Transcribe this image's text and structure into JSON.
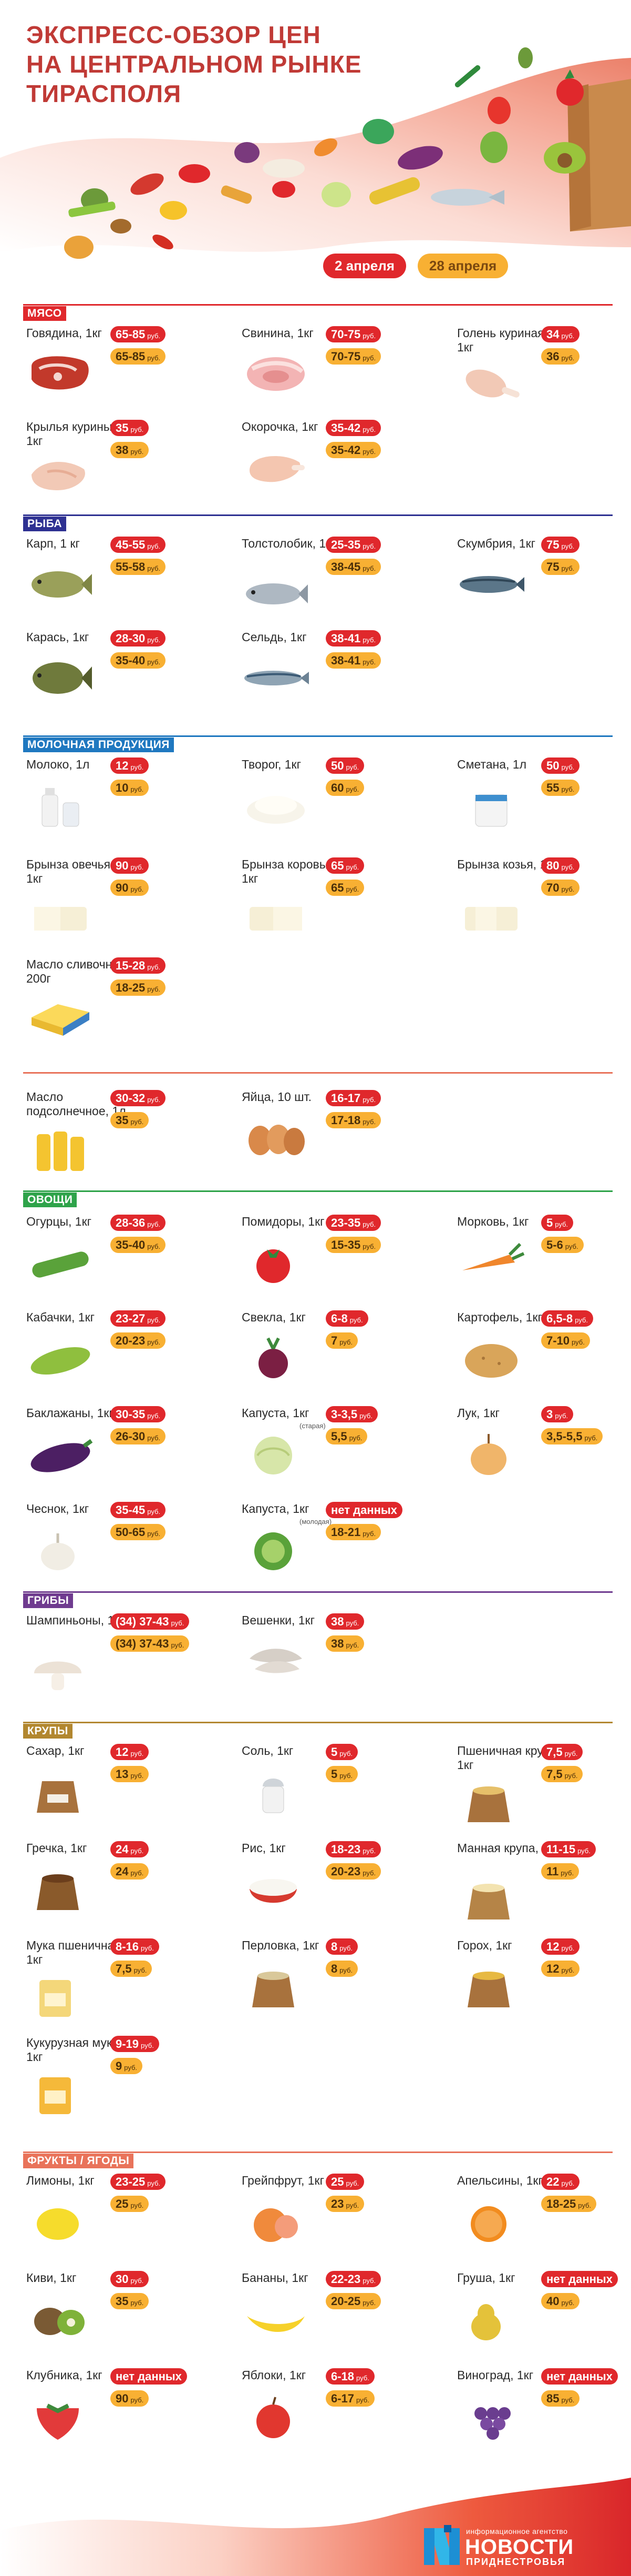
{
  "title": {
    "line1": "ЭКСПРЕСС-ОБЗОР ЦЕН",
    "line2": "НА ЦЕНТРАЛЬНОМ РЫНКЕ",
    "line3": "ТИРАСПОЛЯ"
  },
  "legend": {
    "date_a": "2 апреля",
    "date_b": "28 апреля"
  },
  "colors": {
    "red": "#e0282c",
    "yellow": "#f8b033",
    "title": "#c03a36"
  },
  "currency": "руб.",
  "sections": {
    "meat": {
      "label": "МЯСО",
      "items": [
        {
          "name": "Говядина, 1кг",
          "a": "65-85",
          "b": "65-85",
          "icon": "beef-icon"
        },
        {
          "name": "Свинина, 1кг",
          "a": "70-75",
          "b": "70-75",
          "icon": "pork-icon"
        },
        {
          "name": "Голень куриная, 1кг",
          "a": "34",
          "b": "36",
          "icon": "chicken-leg-icon"
        },
        {
          "name": "Крылья куриные, 1кг",
          "a": "35",
          "b": "38",
          "icon": "chicken-wing-icon"
        },
        {
          "name": "Окорочка, 1кг",
          "a": "35-42",
          "b": "35-42",
          "icon": "chicken-thigh-icon"
        }
      ]
    },
    "fish": {
      "label": "РЫБА",
      "items": [
        {
          "name": "Карп, 1 кг",
          "a": "45-55",
          "b": "55-58",
          "icon": "carp-icon"
        },
        {
          "name": "Толстолобик, 1кг",
          "a": "25-35",
          "b": "38-45",
          "icon": "silver-carp-icon"
        },
        {
          "name": "Скумбрия, 1кг",
          "a": "75",
          "b": "75",
          "icon": "mackerel-icon"
        },
        {
          "name": "Карась, 1кг",
          "a": "28-30",
          "b": "35-40",
          "icon": "crucian-icon"
        },
        {
          "name": "Сельдь, 1кг",
          "a": "38-41",
          "b": "38-41",
          "icon": "herring-icon"
        }
      ]
    },
    "dairy": {
      "label": "МОЛОЧНАЯ ПРОДУКЦИЯ",
      "items": [
        {
          "name": "Молоко, 1л",
          "a": "12",
          "b": "10",
          "icon": "milk-icon"
        },
        {
          "name": "Творог, 1кг",
          "a": "50",
          "b": "60",
          "icon": "cottage-cheese-icon"
        },
        {
          "name": "Сметана, 1л",
          "a": "50",
          "b": "55",
          "icon": "sour-cream-icon"
        },
        {
          "name": "Брынза овечья, 1кг",
          "a": "90",
          "b": "90",
          "icon": "sheep-cheese-icon"
        },
        {
          "name": "Брынза коровья, 1кг",
          "a": "65",
          "b": "65",
          "icon": "cow-cheese-icon"
        },
        {
          "name": "Брынза козья, 1кг",
          "a": "80",
          "b": "70",
          "icon": "goat-cheese-icon"
        },
        {
          "name": "Масло сливочное, 200г",
          "a": "15-28",
          "b": "18-25",
          "icon": "butter-icon"
        }
      ]
    },
    "misc": {
      "items": [
        {
          "name": "Масло подсолнечное, 1л",
          "a": "30-32",
          "b": "35",
          "icon": "sunflower-oil-icon"
        },
        {
          "name": "Яйца, 10 шт.",
          "a": "16-17",
          "b": "17-18",
          "icon": "eggs-icon"
        }
      ]
    },
    "veg": {
      "label": "ОВОЩИ",
      "items": [
        {
          "name": "Огурцы, 1кг",
          "a": "28-36",
          "b": "35-40",
          "icon": "cucumber-icon"
        },
        {
          "name": "Помидоры, 1кг",
          "a": "23-35",
          "b": "15-35",
          "icon": "tomato-icon"
        },
        {
          "name": "Морковь, 1кг",
          "a": "5",
          "b": "5-6",
          "icon": "carrot-icon"
        },
        {
          "name": "Кабачки, 1кг",
          "a": "23-27",
          "b": "20-23",
          "icon": "zucchini-icon"
        },
        {
          "name": "Свекла, 1кг",
          "a": "6-8",
          "b": "7",
          "icon": "beet-icon"
        },
        {
          "name": "Картофель, 1кг",
          "a": "6,5-8",
          "b": "7-10",
          "icon": "potato-icon"
        },
        {
          "name": "Баклажаны, 1кг",
          "a": "30-35",
          "b": "26-30",
          "icon": "eggplant-icon"
        },
        {
          "name": "Капуста, 1кг",
          "note": "(старая)",
          "a": "3-3,5",
          "b": "5,5",
          "icon": "old-cabbage-icon"
        },
        {
          "name": "Лук, 1кг",
          "a": "3",
          "b": "3,5-5,5",
          "icon": "onion-icon"
        },
        {
          "name": "Чеснок, 1кг",
          "a": "35-45",
          "b": "50-65",
          "icon": "garlic-icon"
        },
        {
          "name": "Капуста, 1кг",
          "note": "(молодая)",
          "a": "нет данных",
          "b": "18-21",
          "a_nocur": true,
          "icon": "young-cabbage-icon"
        }
      ]
    },
    "mush": {
      "label": "ГРИБЫ",
      "items": [
        {
          "name": "Шампиньоны, 1кг",
          "a": "(34) 37-43",
          "b": "(34) 37-43",
          "icon": "champignon-icon"
        },
        {
          "name": "Вешенки, 1кг",
          "a": "38",
          "b": "38",
          "icon": "oyster-mushroom-icon"
        }
      ]
    },
    "grain": {
      "label": "КРУПЫ",
      "items": [
        {
          "name": "Сахар, 1кг",
          "a": "12",
          "b": "13",
          "icon": "sugar-sack-icon"
        },
        {
          "name": "Соль, 1кг",
          "a": "5",
          "b": "5",
          "icon": "salt-shaker-icon"
        },
        {
          "name": "Пшеничная крупа, 1кг",
          "a": "7,5",
          "b": "7,5",
          "icon": "wheat-groats-icon"
        },
        {
          "name": "Гречка, 1кг",
          "a": "24",
          "b": "24",
          "icon": "buckwheat-icon"
        },
        {
          "name": "Рис, 1кг",
          "a": "18-23",
          "b": "20-23",
          "icon": "rice-bowl-icon"
        },
        {
          "name": "Манная крупа, 1кг",
          "a": "11-15",
          "b": "11",
          "icon": "semolina-icon"
        },
        {
          "name": "Мука пшеничная, 1кг",
          "a": "8-16",
          "b": "7,5",
          "icon": "wheat-flour-icon"
        },
        {
          "name": "Перловка, 1кг",
          "a": "8",
          "b": "8",
          "icon": "barley-icon"
        },
        {
          "name": "Горох, 1кг",
          "a": "12",
          "b": "12",
          "icon": "peas-icon"
        },
        {
          "name": "Кукурузная мука, 1кг",
          "a": "9-19",
          "b": "9",
          "icon": "corn-flour-icon"
        }
      ]
    },
    "fruit": {
      "label": "ФРУКТЫ / ЯГОДЫ",
      "items": [
        {
          "name": "Лимоны, 1кг",
          "a": "23-25",
          "b": "25",
          "icon": "lemon-icon"
        },
        {
          "name": "Грейпфрут, 1кг",
          "a": "25",
          "b": "23",
          "icon": "grapefruit-icon"
        },
        {
          "name": "Апельсины, 1кг",
          "a": "22",
          "b": "18-25",
          "icon": "orange-icon"
        },
        {
          "name": "Киви, 1кг",
          "a": "30",
          "b": "35",
          "icon": "kiwi-icon"
        },
        {
          "name": "Бананы, 1кг",
          "a": "22-23",
          "b": "20-25",
          "icon": "banana-icon"
        },
        {
          "name": "Груша, 1кг",
          "a": "нет данных",
          "b": "40",
          "a_nocur": true,
          "icon": "pear-icon"
        },
        {
          "name": "Клубника, 1кг",
          "a": "нет данных",
          "b": "90",
          "a_nocur": true,
          "icon": "strawberry-icon"
        },
        {
          "name": "Яблоки, 1кг",
          "a": "6-18",
          "b": "6-17",
          "icon": "apple-icon"
        },
        {
          "name": "Виноград, 1кг",
          "a": "нет данных",
          "b": "85",
          "a_nocur": true,
          "icon": "grapes-icon"
        }
      ]
    }
  },
  "footer": {
    "agency": "информационное агентство",
    "brand": "НОВОСТИ",
    "sub": "ПРИДНЕСТРОВЬЯ",
    "icon": "novosti-logo-icon"
  }
}
